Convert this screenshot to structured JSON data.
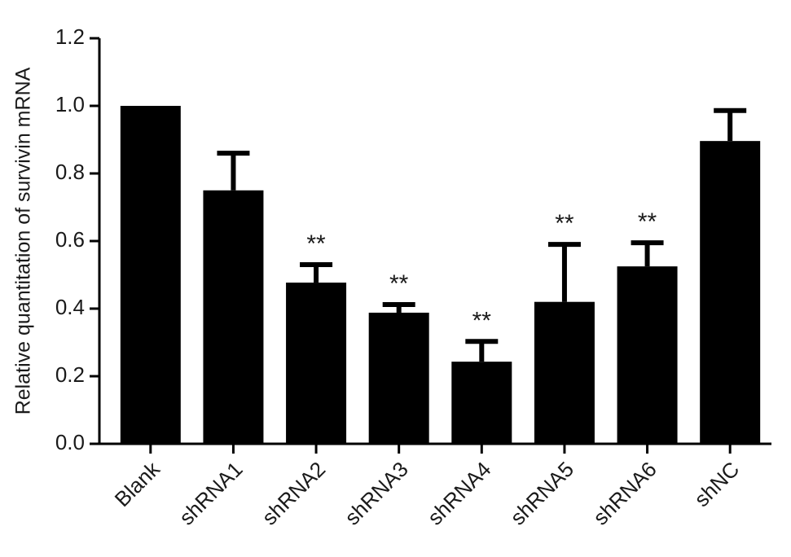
{
  "chart_data": {
    "type": "bar",
    "ylabel": "Relative quantitation of survivin mRNA",
    "categories": [
      "Blank",
      "shRNA1",
      "shRNA2",
      "shRNA3",
      "shRNA4",
      "shRNA5",
      "shRNA6",
      "shNC"
    ],
    "values": [
      1.0,
      0.75,
      0.477,
      0.388,
      0.243,
      0.42,
      0.525,
      0.896
    ],
    "errors": [
      0,
      0.11,
      0.053,
      0.024,
      0.06,
      0.17,
      0.07,
      0.09
    ],
    "significance": [
      null,
      null,
      "**",
      "**",
      "**",
      "**",
      "**",
      null
    ],
    "color": "#000000",
    "ylim": [
      0,
      1.2
    ],
    "yticks": [
      {
        "value": 0,
        "label": "0.0"
      },
      0.2,
      0.4,
      0.6,
      0.8,
      {
        "value": 1,
        "label": "1.0"
      },
      1.2
    ]
  }
}
